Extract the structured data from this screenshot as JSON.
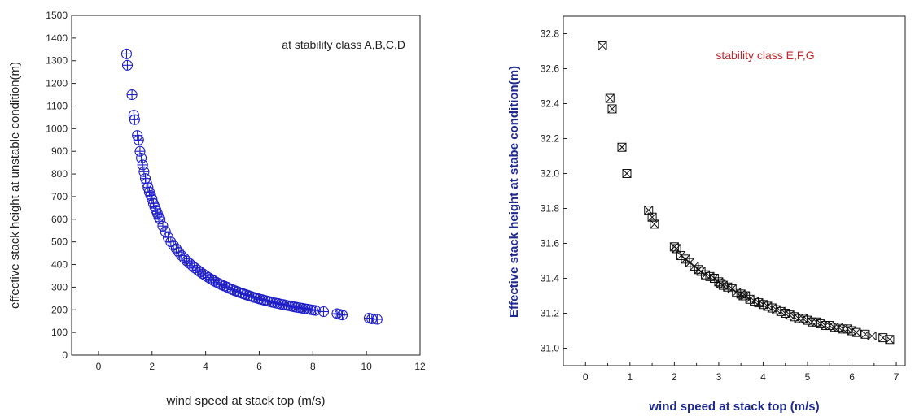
{
  "chart_data": [
    {
      "type": "scatter",
      "annotation": "at stability class A,B,C,D",
      "xlabel": "wind speed at stack top (m/s)",
      "ylabel": "effective stack height at unstable condition(m)",
      "xlim": [
        -1,
        12
      ],
      "ylim": [
        0,
        1500
      ],
      "x_ticks": [
        "0",
        "2",
        "4",
        "6",
        "8",
        "10",
        "12"
      ],
      "y_ticks": [
        "0",
        "100",
        "200",
        "300",
        "400",
        "500",
        "600",
        "700",
        "800",
        "900",
        "1000",
        "1100",
        "1200",
        "1300",
        "1400",
        "1500"
      ],
      "marker": "circle-plus",
      "color": "#1f1fc8",
      "series": [
        {
          "x": [
            1.05,
            1.08,
            1.25,
            1.32,
            1.35,
            1.45,
            1.5,
            1.55,
            1.6,
            1.65,
            1.7,
            1.75,
            1.8,
            1.85,
            1.9,
            1.95,
            2.0,
            2.05,
            2.1,
            2.15,
            2.2,
            2.25,
            2.3,
            2.4,
            2.5,
            2.6,
            2.7,
            2.8,
            2.9,
            3.0,
            3.1,
            3.2,
            3.3,
            3.4,
            3.5,
            3.6,
            3.7,
            3.8,
            3.9,
            4.0,
            4.1,
            4.2,
            4.3,
            4.4,
            4.5,
            4.6,
            4.7,
            4.8,
            4.9,
            5.0,
            5.1,
            5.2,
            5.3,
            5.4,
            5.5,
            5.6,
            5.7,
            5.8,
            5.9,
            6.0,
            6.1,
            6.2,
            6.3,
            6.4,
            6.5,
            6.6,
            6.7,
            6.8,
            6.9,
            7.0,
            7.1,
            7.2,
            7.3,
            7.4,
            7.5,
            7.6,
            7.7,
            7.8,
            7.9,
            8.0,
            8.1,
            8.4,
            8.9,
            9.0,
            9.1,
            10.1,
            10.2,
            10.4
          ],
          "y": [
            1330,
            1280,
            1150,
            1060,
            1040,
            970,
            950,
            900,
            870,
            840,
            810,
            780,
            760,
            740,
            720,
            705,
            690,
            670,
            655,
            640,
            625,
            610,
            600,
            570,
            545,
            520,
            500,
            485,
            470,
            455,
            440,
            428,
            416,
            405,
            395,
            385,
            376,
            367,
            359,
            351,
            343,
            336,
            329,
            322,
            316,
            310,
            305,
            300,
            294,
            289,
            284,
            280,
            275,
            271,
            267,
            263,
            259,
            255,
            252,
            248,
            245,
            242,
            239,
            236,
            233,
            230,
            228,
            225,
            223,
            220,
            218,
            216,
            213,
            211,
            209,
            207,
            205,
            203,
            201,
            199,
            197,
            192,
            183,
            180,
            177,
            163,
            160,
            158
          ]
        }
      ]
    },
    {
      "type": "scatter",
      "annotation": "stability class  E,F,G",
      "xlabel": "wind speed at stack top (m/s)",
      "ylabel": "Effective stack height at stabe condition(m)",
      "xlim": [
        -0.5,
        7.2
      ],
      "ylim": [
        30.9,
        32.9
      ],
      "x_ticks": [
        "0",
        "1",
        "2",
        "3",
        "4",
        "5",
        "6",
        "7"
      ],
      "y_ticks": [
        "31.0",
        "31.2",
        "31.4",
        "31.6",
        "31.8",
        "32.0",
        "32.2",
        "32.4",
        "32.6",
        "32.8"
      ],
      "marker": "square-x",
      "color": "#111111",
      "series": [
        {
          "x": [
            0.38,
            0.55,
            0.6,
            0.82,
            0.93,
            1.42,
            1.5,
            1.55,
            2.0,
            2.05,
            2.15,
            2.25,
            2.35,
            2.45,
            2.55,
            2.6,
            2.7,
            2.8,
            2.9,
            3.0,
            3.05,
            3.1,
            3.2,
            3.3,
            3.4,
            3.5,
            3.55,
            3.6,
            3.7,
            3.8,
            3.9,
            4.0,
            4.1,
            4.2,
            4.3,
            4.4,
            4.5,
            4.6,
            4.7,
            4.8,
            4.9,
            5.0,
            5.1,
            5.2,
            5.3,
            5.4,
            5.5,
            5.6,
            5.7,
            5.8,
            5.9,
            6.0,
            6.1,
            6.3,
            6.45,
            6.7,
            6.85
          ],
          "y": [
            32.73,
            32.43,
            32.37,
            32.15,
            32.0,
            31.79,
            31.75,
            31.71,
            31.58,
            31.57,
            31.53,
            31.51,
            31.49,
            31.47,
            31.45,
            31.44,
            31.42,
            31.41,
            31.4,
            31.38,
            31.37,
            31.36,
            31.35,
            31.34,
            31.32,
            31.31,
            31.3,
            31.3,
            31.28,
            31.27,
            31.26,
            31.25,
            31.24,
            31.23,
            31.22,
            31.21,
            31.2,
            31.19,
            31.18,
            31.17,
            31.17,
            31.16,
            31.15,
            31.15,
            31.14,
            31.13,
            31.13,
            31.12,
            31.12,
            31.11,
            31.11,
            31.1,
            31.09,
            31.08,
            31.07,
            31.06,
            31.05
          ]
        }
      ]
    }
  ]
}
